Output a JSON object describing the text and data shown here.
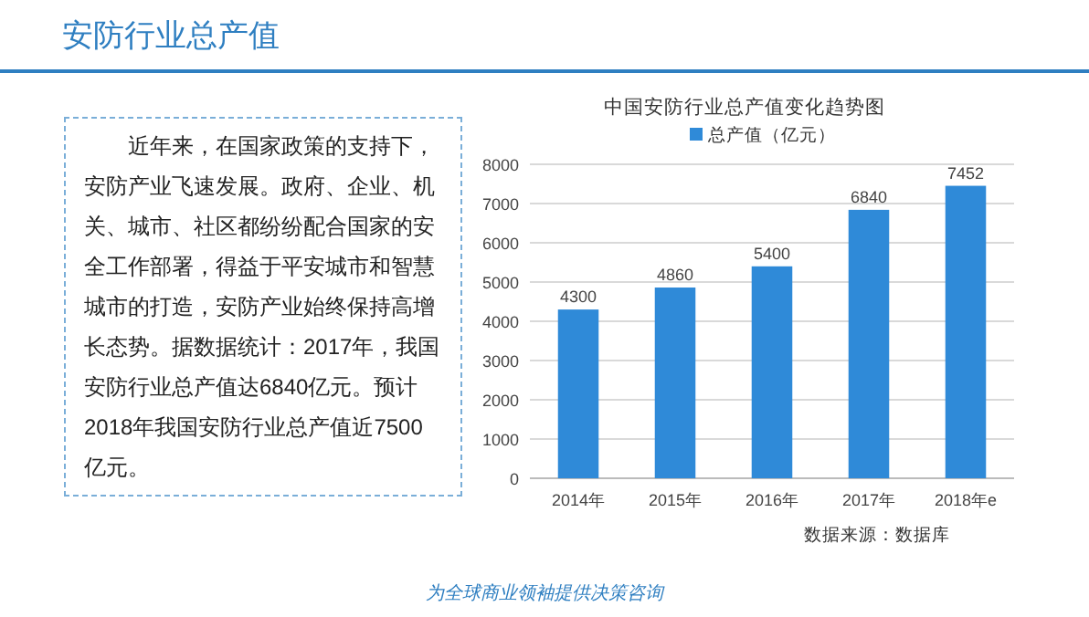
{
  "chart_data": [
    {
      "type": "other",
      "title": "安防行业总产值",
      "annotations": [
        "近年来，在国家政策的支持下，安防产业飞速发展。政府、企业、机关、城市、社区都纷纷配合国家的安全工作部署，得益于平安城市和智慧城市的打造，安防产业始终保持高增长态势。据数据统计：2017年，我国安防行业总产值达6840亿元。预计2018年我国安防行业总产值近7500亿元。",
        "为全球商业领袖提供决策咨询"
      ]
    },
    {
      "type": "bar",
      "title": "中国安防行业总产值变化趋势图",
      "categories": [
        "2014年",
        "2015年",
        "2016年",
        "2017年",
        "2018年e"
      ],
      "series": [
        {
          "name": "总产值（亿元）",
          "color": "#2f8ad8",
          "values": [
            4300,
            4860,
            5400,
            6840,
            7452
          ]
        }
      ],
      "ylim": [
        0,
        8000
      ],
      "yticks": [
        0,
        1000,
        2000,
        3000,
        4000,
        5000,
        6000,
        7000,
        8000
      ],
      "grid": "y",
      "legend": "top",
      "data_labels": true,
      "annotations": [
        "数据来源：数据库"
      ]
    }
  ]
}
